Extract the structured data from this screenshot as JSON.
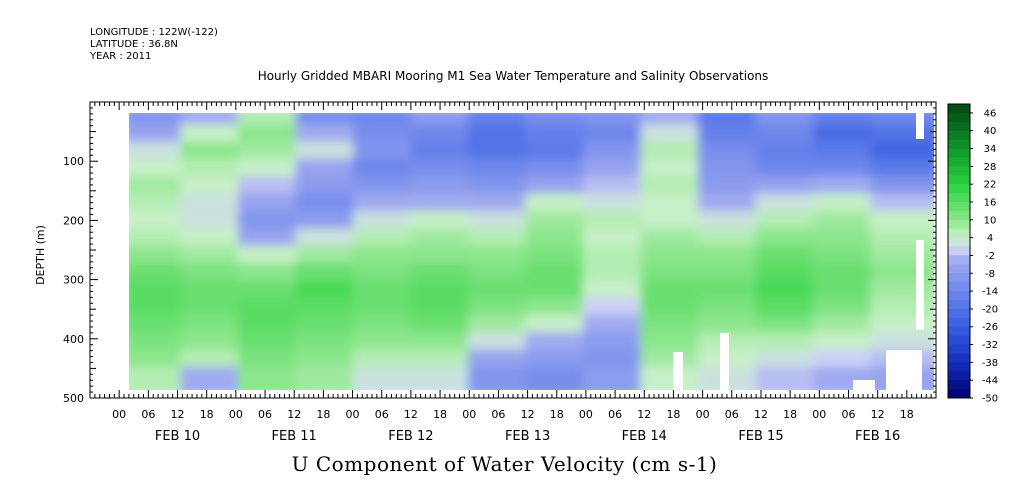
{
  "meta": {
    "longitude": "LONGITUDE : 122W(-122)",
    "latitude": "LATITUDE : 36.8N",
    "year": "YEAR : 2011"
  },
  "chart_data": {
    "type": "heatmap",
    "title": "Hourly Gridded MBARI Mooring M1 Sea Water Temperature and Salinity Observations",
    "xlabel": "U Component of Water Velocity (cm s-1)",
    "ylabel": "DEPTH (m)",
    "y_axis": {
      "range": [
        0,
        500
      ],
      "inverted": true,
      "ticks": [
        100,
        200,
        300,
        400,
        500
      ],
      "data_range": [
        20,
        485
      ]
    },
    "x_axis": {
      "unit": "hours",
      "start": "FEB 09 18:00",
      "hour_ticks": [
        "00",
        "06",
        "12",
        "18",
        "00",
        "06",
        "12",
        "18",
        "00",
        "06",
        "12",
        "18",
        "00",
        "06",
        "12",
        "18",
        "00",
        "06",
        "12",
        "18",
        "00",
        "06",
        "12",
        "18",
        "00",
        "06",
        "12",
        "18"
      ],
      "day_labels": [
        "FEB 10",
        "FEB 11",
        "FEB 12",
        "FEB 13",
        "FEB 14",
        "FEB 15",
        "FEB 16"
      ],
      "data_start": "FEB 10 03:00",
      "data_end": "FEB 16 21:00"
    },
    "colorbar": {
      "labels": [
        "46",
        "40",
        "34",
        "28",
        "22",
        "16",
        "10",
        "4",
        "-2",
        "-8",
        "-14",
        "-20",
        "-26",
        "-32",
        "-38",
        "-44",
        "-50"
      ],
      "range": [
        -50,
        49
      ],
      "step": 3
    },
    "description_grid": {
      "depth_rows_m": [
        20,
        50,
        80,
        110,
        140,
        170,
        200,
        230,
        260,
        290,
        320,
        350,
        380,
        410,
        440,
        470
      ],
      "time_cols_hours": [
        0,
        12,
        24,
        36,
        48,
        60,
        72,
        84,
        96,
        108,
        120,
        132,
        144,
        156
      ],
      "u_values_cm_s": [
        [
          -10,
          -4,
          6,
          -12,
          -14,
          -8,
          -16,
          -12,
          -10,
          -4,
          -18,
          -10,
          -16,
          -14
        ],
        [
          -6,
          4,
          10,
          -4,
          -12,
          -14,
          -20,
          -16,
          -14,
          2,
          -16,
          -14,
          -22,
          -20
        ],
        [
          2,
          10,
          8,
          2,
          -10,
          -16,
          -20,
          -18,
          -10,
          6,
          -12,
          -16,
          -18,
          -24
        ],
        [
          4,
          6,
          4,
          -6,
          -14,
          -12,
          -14,
          -12,
          -6,
          4,
          -10,
          -14,
          -14,
          -18
        ],
        [
          8,
          4,
          -2,
          -8,
          -10,
          -8,
          -10,
          -6,
          -2,
          6,
          -8,
          -6,
          -4,
          -10
        ],
        [
          6,
          2,
          -6,
          -12,
          -4,
          -4,
          -4,
          4,
          2,
          4,
          -4,
          2,
          4,
          -2
        ],
        [
          4,
          2,
          -10,
          -8,
          2,
          4,
          2,
          8,
          6,
          4,
          2,
          6,
          8,
          4
        ],
        [
          6,
          4,
          -6,
          2,
          6,
          8,
          6,
          10,
          4,
          8,
          6,
          10,
          10,
          6
        ],
        [
          10,
          8,
          4,
          8,
          10,
          10,
          10,
          12,
          6,
          10,
          10,
          14,
          12,
          8
        ],
        [
          14,
          12,
          10,
          14,
          12,
          14,
          12,
          14,
          6,
          12,
          12,
          16,
          14,
          10
        ],
        [
          16,
          14,
          14,
          18,
          14,
          16,
          14,
          14,
          4,
          14,
          14,
          18,
          14,
          8
        ],
        [
          16,
          14,
          16,
          16,
          14,
          16,
          12,
          10,
          0,
          14,
          12,
          16,
          12,
          6
        ],
        [
          14,
          12,
          16,
          14,
          12,
          14,
          8,
          4,
          -4,
          12,
          10,
          12,
          8,
          4
        ],
        [
          12,
          10,
          14,
          12,
          10,
          10,
          2,
          -4,
          -8,
          10,
          6,
          6,
          4,
          2
        ],
        [
          10,
          6,
          12,
          10,
          6,
          6,
          -6,
          -8,
          -10,
          8,
          4,
          2,
          0,
          -2
        ],
        [
          6,
          -4,
          10,
          8,
          2,
          2,
          -10,
          -12,
          -8,
          4,
          2,
          -2,
          -4,
          -6
        ]
      ]
    }
  }
}
